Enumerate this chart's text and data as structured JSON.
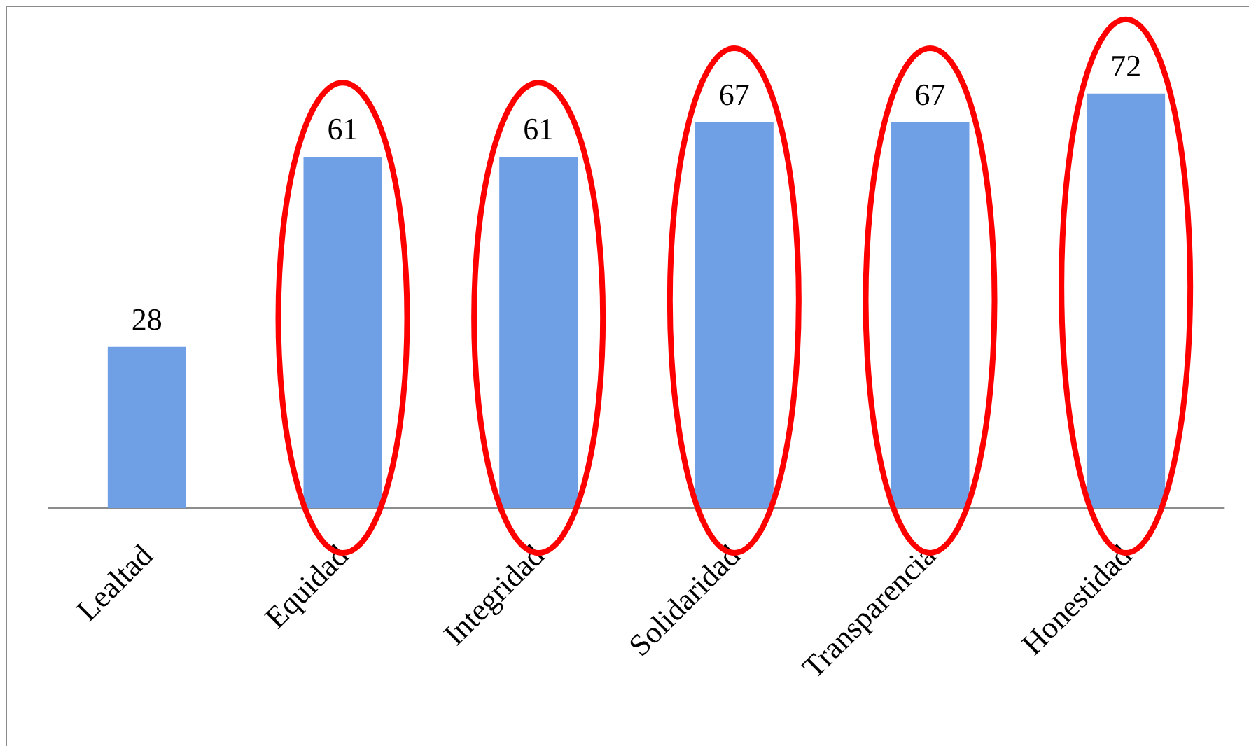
{
  "chart_data": {
    "type": "bar",
    "categories": [
      "Lealtad",
      "Equidad",
      "Integridad",
      "Solidaridad",
      "Transparencia",
      "Honestidad"
    ],
    "values": [
      28,
      61,
      61,
      67,
      67,
      72
    ],
    "color": "#6fa0e6",
    "data_labels": true
  }
}
